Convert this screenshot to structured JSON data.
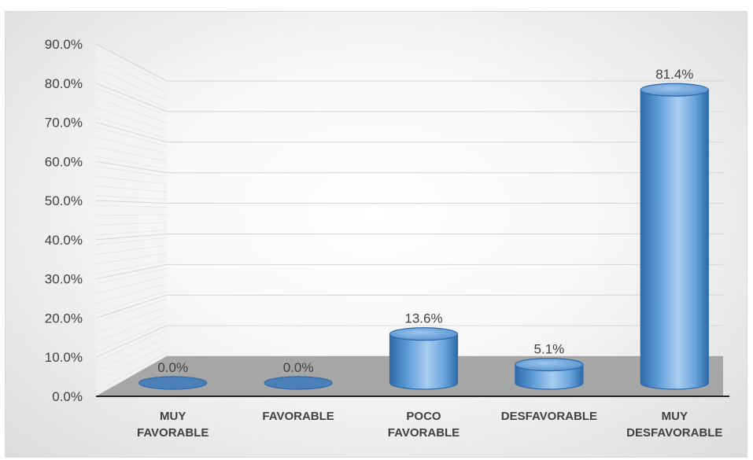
{
  "chart_data": {
    "type": "bar",
    "style": "3d-cylinder",
    "categories": [
      [
        "MUY",
        "FAVORABLE"
      ],
      [
        "FAVORABLE"
      ],
      [
        "POCO",
        "FAVORABLE"
      ],
      [
        "DESFAVORABLE"
      ],
      [
        "MUY",
        "DESFAVORABLE"
      ]
    ],
    "values": [
      0.0,
      0.0,
      13.6,
      5.1,
      81.4
    ],
    "data_labels": [
      "0.0%",
      "0.0%",
      "13.6%",
      "5.1%",
      "81.4%"
    ],
    "title": "",
    "xlabel": "",
    "ylabel": "",
    "ylim": [
      0,
      90
    ],
    "yticks": [
      "0.0%",
      "10.0%",
      "20.0%",
      "30.0%",
      "40.0%",
      "50.0%",
      "60.0%",
      "70.0%",
      "80.0%",
      "90.0%"
    ],
    "grid": true,
    "legend": "none",
    "colors": {
      "bar": "#5b9bd5",
      "bar_dark": "#2e75b6",
      "floor": "#a6a6a6",
      "axis": "#404040"
    }
  }
}
